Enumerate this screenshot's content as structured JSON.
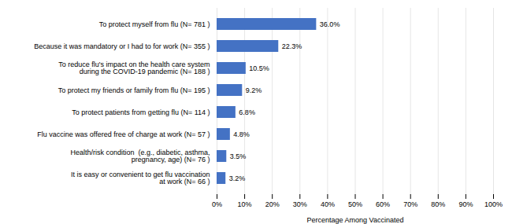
{
  "chart_data": {
    "type": "bar",
    "orientation": "horizontal",
    "categories": [
      "It is easy or convenient to get flu vaccination\nat work (N= 66 )",
      "Health/risk condition  (e.g., diabetic, asthma,\npregnancy, age) (N= 76 )",
      "Flu vaccine was offered free of charge at work (N= 57 )",
      "To protect patients from getting flu (N= 114 )",
      "To protect my friends or family from flu (N= 195 )",
      "To reduce flu's impact on the health care system\nduring the COVID-19 pandemic (N= 188 )",
      "Because it was mandatory or I had to for work (N= 355 )",
      "To protect myself from flu (N= 781 )"
    ],
    "values": [
      3.2,
      3.5,
      4.8,
      6.8,
      9.2,
      10.5,
      22.3,
      36.0
    ],
    "value_labels": [
      "3.2%",
      "3.5%",
      "4.8%",
      "6.8%",
      "9.2%",
      "10.5%",
      "22.3%",
      "36.0%"
    ],
    "data_labels": true,
    "color": "#4472C4",
    "xlabel": "Percentage Among Vaccinated",
    "xlim": [
      0,
      100
    ],
    "xticks": [
      {
        "value": 0,
        "label": "0%"
      },
      {
        "value": 10,
        "label": "10%"
      },
      {
        "value": 20,
        "label": "20%"
      },
      {
        "value": 30,
        "label": "30%"
      },
      {
        "value": 40,
        "label": "40%"
      },
      {
        "value": 50,
        "label": "50%"
      },
      {
        "value": 60,
        "label": "60%"
      },
      {
        "value": 70,
        "label": "70%"
      },
      {
        "value": 80,
        "label": "80%"
      },
      {
        "value": 90,
        "label": "90%"
      },
      {
        "value": 100,
        "label": "100%"
      }
    ],
    "grid": true
  }
}
